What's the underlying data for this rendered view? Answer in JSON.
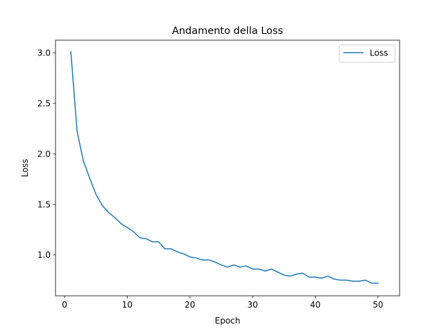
{
  "chart_data": {
    "type": "line",
    "title": "Andamento della Loss",
    "xlabel": "Epoch",
    "ylabel": "Loss",
    "xlim": [
      -1.45,
      53.45
    ],
    "ylim": [
      0.595,
      3.125
    ],
    "xticks": [
      0,
      10,
      20,
      30,
      40,
      50
    ],
    "yticks": [
      1.0,
      1.5,
      2.0,
      2.5,
      3.0
    ],
    "xtick_labels": [
      "0",
      "10",
      "20",
      "30",
      "40",
      "50"
    ],
    "ytick_labels": [
      "1.0",
      "1.5",
      "2.0",
      "2.5",
      "3.0"
    ],
    "grid": false,
    "legend_position": "top-right",
    "series": [
      {
        "name": "Loss",
        "color": "#1f77b4",
        "x": [
          1,
          2,
          3,
          4,
          5,
          6,
          7,
          8,
          9,
          10,
          11,
          12,
          13,
          14,
          15,
          16,
          17,
          18,
          19,
          20,
          21,
          22,
          23,
          24,
          25,
          26,
          27,
          28,
          29,
          30,
          31,
          32,
          33,
          34,
          35,
          36,
          37,
          38,
          39,
          40,
          41,
          42,
          43,
          44,
          45,
          46,
          47,
          48,
          49,
          50
        ],
        "y": [
          3.01,
          2.22,
          1.93,
          1.76,
          1.6,
          1.49,
          1.42,
          1.37,
          1.31,
          1.27,
          1.23,
          1.17,
          1.16,
          1.13,
          1.13,
          1.06,
          1.06,
          1.03,
          1.01,
          0.98,
          0.97,
          0.95,
          0.95,
          0.93,
          0.9,
          0.88,
          0.9,
          0.88,
          0.89,
          0.86,
          0.86,
          0.84,
          0.86,
          0.83,
          0.8,
          0.79,
          0.81,
          0.82,
          0.78,
          0.78,
          0.77,
          0.79,
          0.76,
          0.75,
          0.75,
          0.74,
          0.74,
          0.75,
          0.72,
          0.72
        ]
      }
    ]
  }
}
